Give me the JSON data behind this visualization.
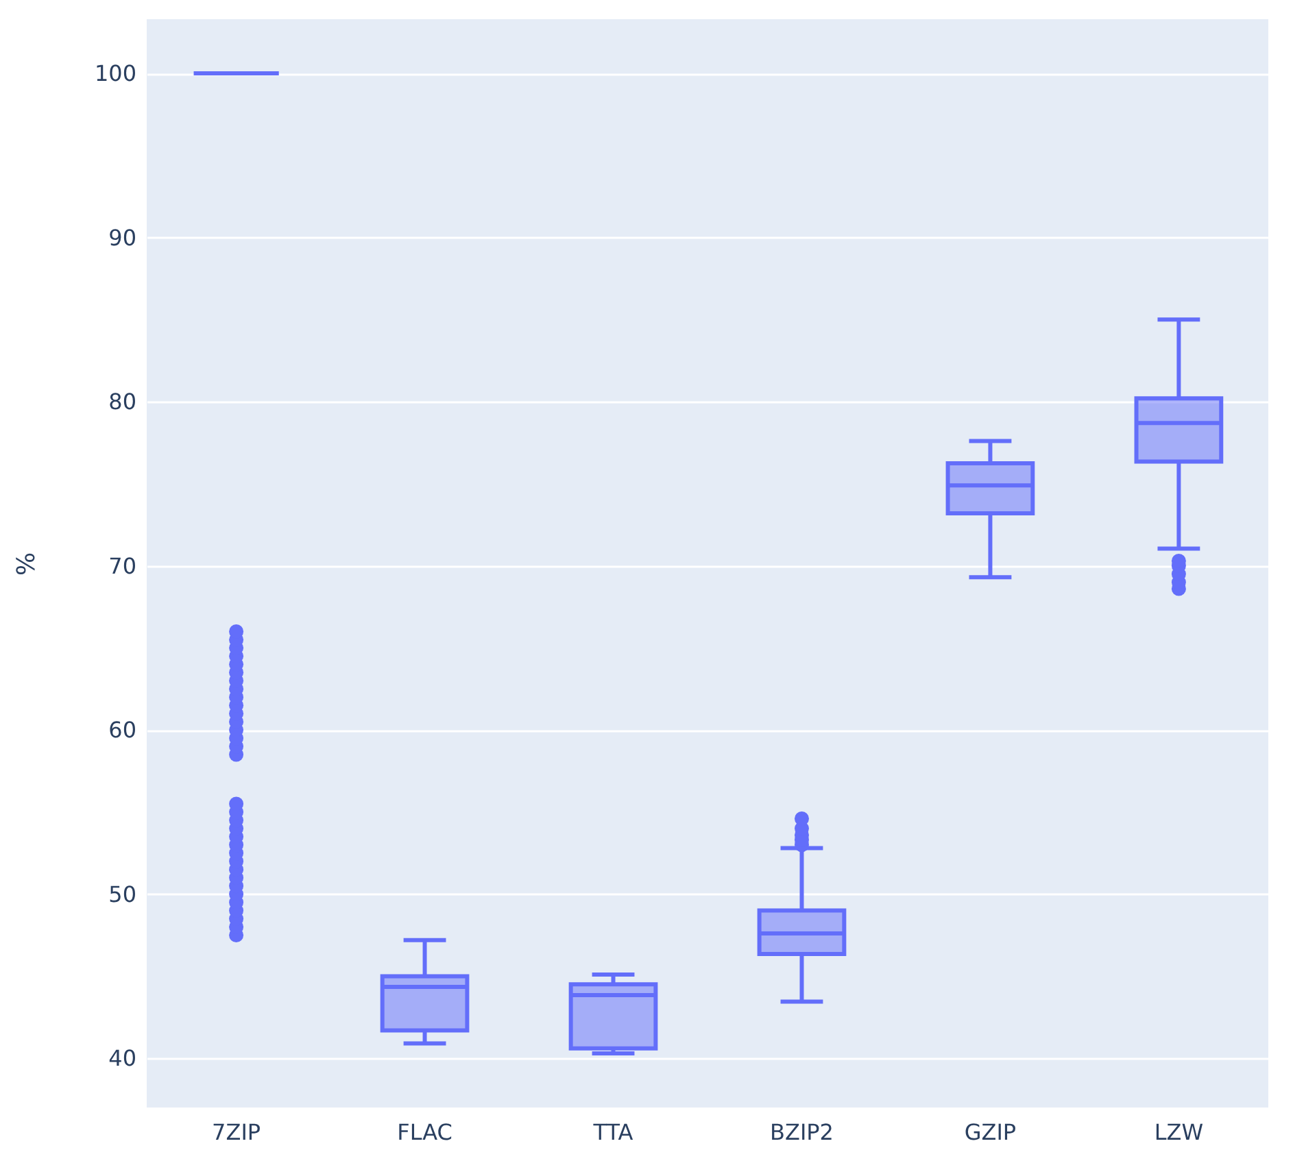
{
  "chart_data": {
    "type": "box",
    "ylabel": "%",
    "categories": [
      "7ZIP",
      "FLAC",
      "TTA",
      "BZIP2",
      "GZIP",
      "LZW"
    ],
    "series": [
      {
        "color": "#636efa",
        "boxes": [
          {
            "low": 100,
            "q1": 100,
            "median": 100,
            "q3": 100,
            "high": 100,
            "outliers": [
              47.5,
              48,
              48.5,
              49,
              49.5,
              50,
              50.5,
              51,
              51.5,
              52,
              52.5,
              53,
              53.5,
              54,
              54.5,
              55,
              55.5,
              58.5,
              59,
              59.5,
              60,
              60.5,
              61,
              61.5,
              62,
              62.5,
              63,
              63.5,
              64,
              64.5,
              65,
              65.5,
              66
            ]
          },
          {
            "low": 40.9,
            "q1": 41.7,
            "median": 44.35,
            "q3": 45.0,
            "high": 47.2
          },
          {
            "low": 40.3,
            "q1": 40.6,
            "median": 43.85,
            "q3": 44.5,
            "high": 45.1
          },
          {
            "low": 43.45,
            "q1": 46.35,
            "median": 47.6,
            "q3": 49.0,
            "high": 52.8,
            "outliers": [
              53.0,
              53.3,
              53.6,
              54.0,
              54.6
            ]
          },
          {
            "low": 69.3,
            "q1": 73.2,
            "median": 74.9,
            "q3": 76.25,
            "high": 77.6
          },
          {
            "low": 71.05,
            "q1": 76.35,
            "median": 78.7,
            "q3": 80.2,
            "high": 85.0,
            "outliers": [
              68.6,
              69.0,
              69.5,
              70.0,
              70.3
            ]
          }
        ]
      }
    ],
    "ylim": [
      37,
      103.3
    ],
    "yticks": [
      40,
      50,
      60,
      70,
      80,
      90,
      100
    ],
    "grid": "y"
  }
}
